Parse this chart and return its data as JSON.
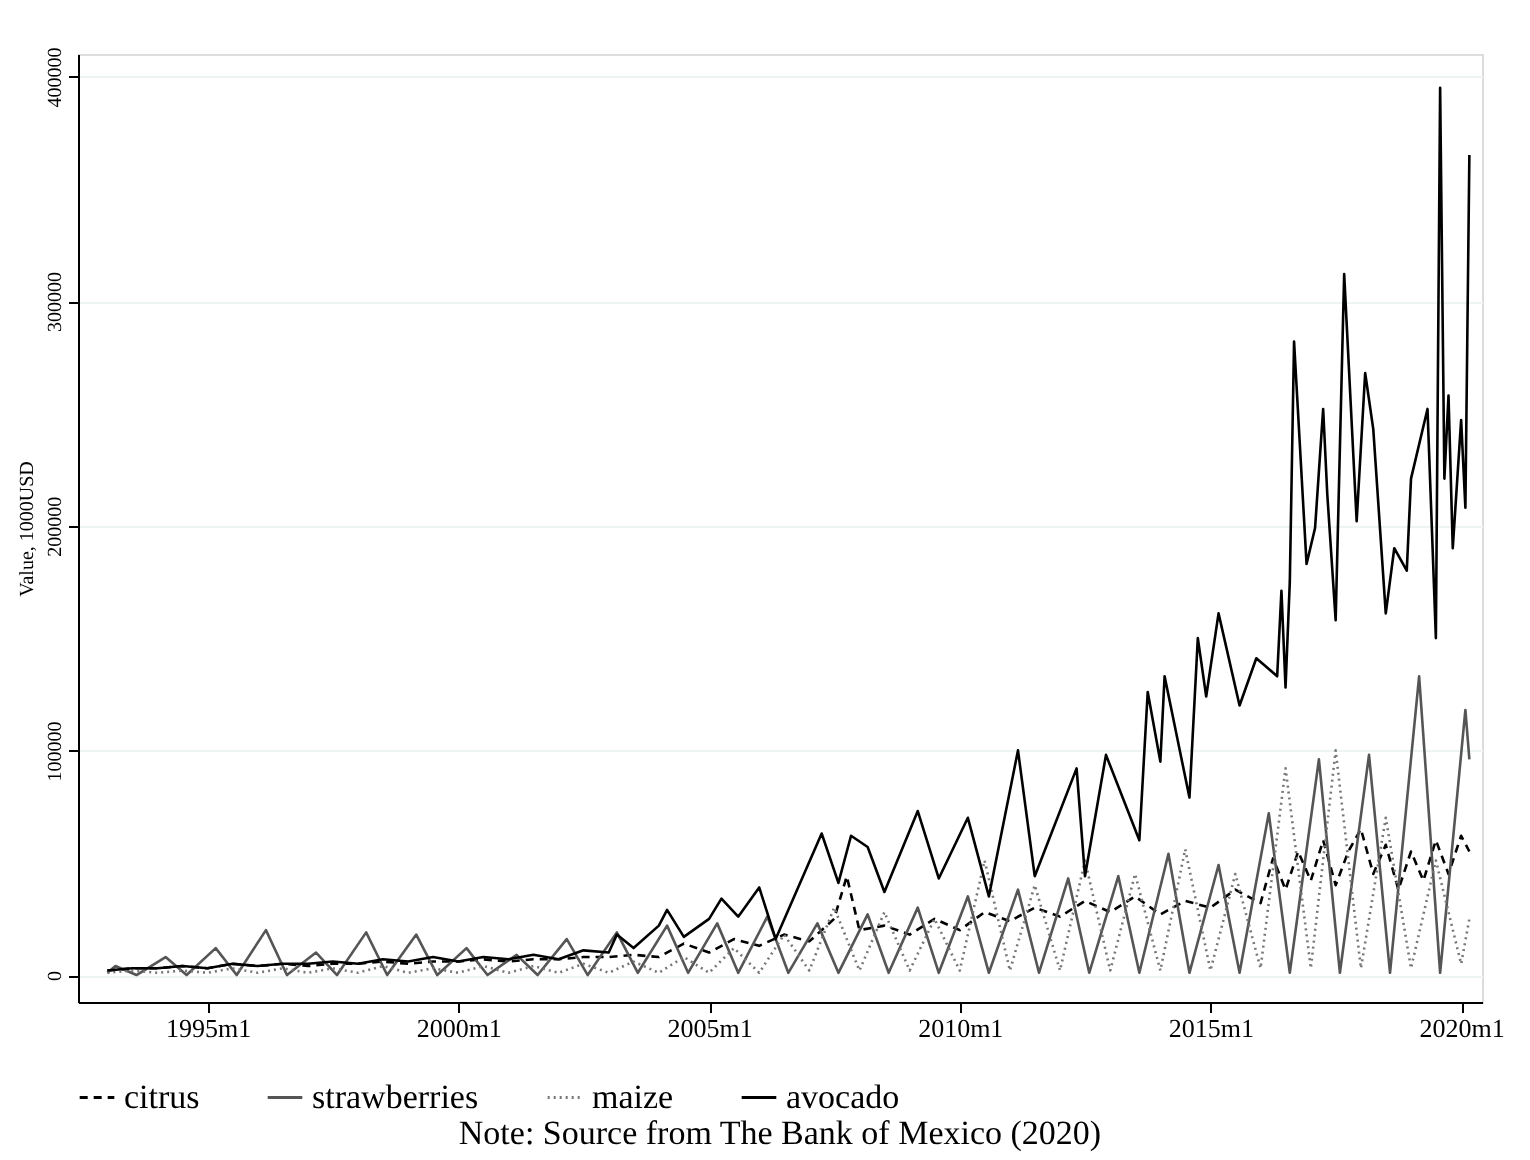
{
  "chart_data": {
    "type": "line",
    "ylabel": "Value, 1000USD",
    "annotations": [
      "Note: Source from The Bank of Mexico (2020)"
    ],
    "xlim": [
      "1992-06",
      "2020-06"
    ],
    "xticks": [
      {
        "value": "1995-01",
        "label": "1995m1"
      },
      {
        "value": "2000-01",
        "label": "2000m1"
      },
      {
        "value": "2005-01",
        "label": "2005m1"
      },
      {
        "value": "2010-01",
        "label": "2010m1"
      },
      {
        "value": "2015-01",
        "label": "2015m1"
      },
      {
        "value": "2020-01",
        "label": "2020m1"
      }
    ],
    "ylim": [
      -12000,
      410000
    ],
    "yticks": [
      0,
      100000,
      200000,
      300000,
      400000
    ],
    "grid": "y",
    "legend": "bottom",
    "series": [
      {
        "name": "citrus",
        "color": "#000000",
        "line_style": "dashed",
        "x": [
          "1993-01",
          "1993-07",
          "1994-01",
          "1994-07",
          "1995-01",
          "1995-07",
          "1996-01",
          "1996-07",
          "1997-01",
          "1997-07",
          "1998-01",
          "1998-07",
          "1999-01",
          "1999-07",
          "2000-01",
          "2000-07",
          "2001-01",
          "2001-07",
          "2002-01",
          "2002-07",
          "2003-01",
          "2003-07",
          "2004-01",
          "2004-07",
          "2005-01",
          "2005-07",
          "2006-01",
          "2006-07",
          "2007-01",
          "2007-07",
          "2007-10",
          "2008-01",
          "2008-07",
          "2009-01",
          "2009-07",
          "2010-01",
          "2010-07",
          "2011-01",
          "2011-07",
          "2012-01",
          "2012-07",
          "2013-01",
          "2013-07",
          "2014-01",
          "2014-07",
          "2015-01",
          "2015-07",
          "2016-01",
          "2016-04",
          "2016-07",
          "2016-10",
          "2017-01",
          "2017-04",
          "2017-07",
          "2017-10",
          "2018-01",
          "2018-04",
          "2018-07",
          "2018-10",
          "2019-01",
          "2019-04",
          "2019-07",
          "2019-10",
          "2020-01",
          "2020-03"
        ],
        "values": [
          2000,
          3000,
          3000,
          4000,
          3000,
          5000,
          4000,
          5000,
          4000,
          5000,
          5000,
          6000,
          5000,
          6000,
          6000,
          7000,
          6000,
          7000,
          7000,
          8000,
          8000,
          9000,
          8000,
          14000,
          10000,
          16000,
          13000,
          18000,
          15000,
          25000,
          44000,
          20000,
          22000,
          18000,
          25000,
          20000,
          28000,
          24000,
          30000,
          26000,
          33000,
          28000,
          35000,
          27000,
          33000,
          30000,
          38000,
          32000,
          52000,
          38000,
          55000,
          42000,
          60000,
          40000,
          55000,
          65000,
          45000,
          58000,
          38000,
          55000,
          42000,
          60000,
          45000,
          62000,
          55000
        ]
      },
      {
        "name": "strawberries",
        "color": "#555555",
        "line_style": "solid",
        "x": [
          "1993-01",
          "1993-03",
          "1993-08",
          "1994-03",
          "1994-08",
          "1995-03",
          "1995-08",
          "1996-03",
          "1996-08",
          "1997-03",
          "1997-08",
          "1998-03",
          "1998-08",
          "1999-03",
          "1999-08",
          "2000-03",
          "2000-08",
          "2001-03",
          "2001-08",
          "2002-03",
          "2002-08",
          "2003-03",
          "2003-08",
          "2004-03",
          "2004-08",
          "2005-03",
          "2005-08",
          "2006-03",
          "2006-08",
          "2007-03",
          "2007-08",
          "2008-03",
          "2008-08",
          "2009-03",
          "2009-08",
          "2010-03",
          "2010-08",
          "2011-03",
          "2011-08",
          "2012-03",
          "2012-08",
          "2013-03",
          "2013-08",
          "2014-03",
          "2014-08",
          "2015-03",
          "2015-08",
          "2016-03",
          "2016-08",
          "2017-03",
          "2017-08",
          "2018-03",
          "2018-08",
          "2019-03",
          "2019-08",
          "2020-02",
          "2020-03"
        ],
        "values": [
          1000,
          4000,
          0,
          8000,
          0,
          12000,
          0,
          20000,
          0,
          10000,
          0,
          19000,
          0,
          18000,
          0,
          12000,
          0,
          9000,
          0,
          16000,
          0,
          19000,
          1000,
          22000,
          1000,
          23000,
          1000,
          26000,
          1000,
          23000,
          1000,
          27000,
          1000,
          30000,
          1000,
          35000,
          1000,
          38000,
          1000,
          43000,
          1000,
          44000,
          1000,
          54000,
          1000,
          49000,
          1000,
          72000,
          1000,
          96000,
          1000,
          98000,
          1000,
          133000,
          1000,
          118000,
          96000
        ]
      },
      {
        "name": "maize",
        "color": "#777777",
        "line_style": "dotted",
        "x": [
          "1993-01",
          "1993-07",
          "1994-01",
          "1994-07",
          "1995-01",
          "1995-07",
          "1996-01",
          "1996-07",
          "1997-01",
          "1997-07",
          "1998-01",
          "1998-07",
          "1999-01",
          "1999-07",
          "2000-01",
          "2000-07",
          "2001-01",
          "2001-07",
          "2002-01",
          "2002-07",
          "2003-01",
          "2003-07",
          "2004-01",
          "2004-07",
          "2005-01",
          "2005-07",
          "2006-01",
          "2006-07",
          "2007-01",
          "2007-07",
          "2008-01",
          "2008-07",
          "2009-01",
          "2009-07",
          "2010-01",
          "2010-07",
          "2011-01",
          "2011-07",
          "2012-01",
          "2012-07",
          "2013-01",
          "2013-07",
          "2014-01",
          "2014-07",
          "2015-01",
          "2015-07",
          "2016-01",
          "2016-07",
          "2017-01",
          "2017-07",
          "2018-01",
          "2018-07",
          "2019-01",
          "2019-07",
          "2020-01",
          "2020-03"
        ],
        "values": [
          1000,
          2000,
          1000,
          2000,
          1000,
          3000,
          1000,
          3000,
          1000,
          3000,
          1000,
          4000,
          1000,
          3000,
          1000,
          4000,
          1000,
          4000,
          1000,
          5000,
          1000,
          6000,
          1000,
          8000,
          1000,
          12000,
          1000,
          18000,
          2000,
          30000,
          2000,
          28000,
          2000,
          25000,
          2000,
          51000,
          2000,
          40000,
          2000,
          51000,
          2000,
          45000,
          2000,
          56000,
          2000,
          45000,
          3000,
          92000,
          3000,
          100000,
          3000,
          70000,
          3000,
          51000,
          5000,
          25000
        ]
      },
      {
        "name": "avocado",
        "color": "#000000",
        "line_style": "solid",
        "x": [
          "1993-01",
          "1993-07",
          "1994-01",
          "1994-07",
          "1995-01",
          "1995-07",
          "1996-01",
          "1996-07",
          "1997-01",
          "1997-07",
          "1998-01",
          "1998-07",
          "1999-01",
          "1999-07",
          "2000-01",
          "2000-07",
          "2001-01",
          "2001-07",
          "2002-01",
          "2002-07",
          "2003-01",
          "2003-03",
          "2003-07",
          "2004-01",
          "2004-03",
          "2004-07",
          "2005-01",
          "2005-04",
          "2005-08",
          "2006-01",
          "2006-05",
          "2007-04",
          "2007-08",
          "2007-11",
          "2008-03",
          "2008-07",
          "2009-03",
          "2009-08",
          "2010-03",
          "2010-08",
          "2011-03",
          "2011-07",
          "2012-05",
          "2012-07",
          "2012-12",
          "2013-08",
          "2013-10",
          "2014-01",
          "2014-02",
          "2014-08",
          "2014-10",
          "2014-12",
          "2015-03",
          "2015-08",
          "2015-12",
          "2016-05",
          "2016-06",
          "2016-07",
          "2016-08",
          "2016-09",
          "2016-12",
          "2017-02",
          "2017-04",
          "2017-05",
          "2017-07",
          "2017-09",
          "2017-12",
          "2018-02",
          "2018-04",
          "2018-07",
          "2018-09",
          "2018-12",
          "2019-01",
          "2019-05",
          "2019-07",
          "2019-08",
          "2019-09",
          "2019-10",
          "2019-11",
          "2020-01",
          "2020-02",
          "2020-03"
        ],
        "values": [
          2000,
          3000,
          3000,
          4000,
          3000,
          5000,
          4000,
          5000,
          5000,
          6000,
          5000,
          7000,
          6000,
          8000,
          6000,
          8000,
          7000,
          9000,
          7000,
          11000,
          10000,
          18000,
          12000,
          22000,
          29000,
          17000,
          25000,
          34000,
          26000,
          39000,
          16000,
          63000,
          41000,
          62000,
          57000,
          37000,
          73000,
          43000,
          70000,
          35000,
          100000,
          44000,
          92000,
          44000,
          98000,
          60000,
          126000,
          95000,
          133000,
          79000,
          150000,
          124000,
          161000,
          120000,
          141000,
          133000,
          171000,
          128000,
          175000,
          282000,
          183000,
          199000,
          252000,
          214000,
          158000,
          312000,
          202000,
          268000,
          243000,
          161000,
          190000,
          180000,
          221000,
          252000,
          150000,
          395000,
          221000,
          258000,
          190000,
          247000,
          208000,
          365000
        ]
      }
    ]
  }
}
